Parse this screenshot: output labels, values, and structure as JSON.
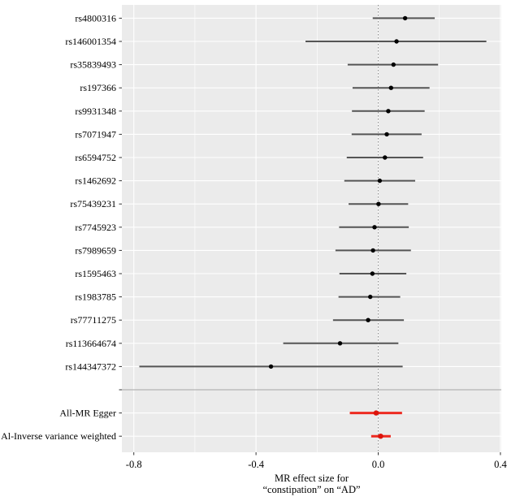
{
  "figure": {
    "background": "#ffffff",
    "panel_background": "#ebebeb",
    "grid_color": "#ffffff"
  },
  "chart_data": {
    "type": "forest",
    "xlabel_line1": "MR effect size for",
    "xlabel_line2": "“constipation” on “AD”",
    "x_tick_values": [
      -0.8,
      -0.4,
      0.0,
      0.4
    ],
    "x_tick_labels": [
      "-0.8",
      "-0.4",
      "0.0",
      "0.4"
    ],
    "x_minor_tick_values": [
      -0.6,
      -0.2,
      0.2
    ],
    "xlim": [
      -0.839,
      0.404
    ],
    "reference_line": 0.0,
    "grid": true,
    "rows": [
      {
        "label": "rs4800316",
        "estimate": 0.088,
        "ci_low": -0.018,
        "ci_high": 0.185,
        "group": "snp"
      },
      {
        "label": "rs146001354",
        "estimate": 0.06,
        "ci_low": -0.238,
        "ci_high": 0.354,
        "group": "snp"
      },
      {
        "label": "rs35839493",
        "estimate": 0.05,
        "ci_low": -0.1,
        "ci_high": 0.196,
        "group": "snp"
      },
      {
        "label": "rs197366",
        "estimate": 0.042,
        "ci_low": -0.084,
        "ci_high": 0.168,
        "group": "snp"
      },
      {
        "label": "rs9931348",
        "estimate": 0.033,
        "ci_low": -0.086,
        "ci_high": 0.152,
        "group": "snp"
      },
      {
        "label": "rs7071947",
        "estimate": 0.028,
        "ci_low": -0.087,
        "ci_high": 0.142,
        "group": "snp"
      },
      {
        "label": "rs6594752",
        "estimate": 0.022,
        "ci_low": -0.103,
        "ci_high": 0.147,
        "group": "snp"
      },
      {
        "label": "rs1462692",
        "estimate": 0.005,
        "ci_low": -0.111,
        "ci_high": 0.121,
        "group": "snp"
      },
      {
        "label": "rs75439231",
        "estimate": 0.001,
        "ci_low": -0.097,
        "ci_high": 0.098,
        "group": "snp"
      },
      {
        "label": "rs7745923",
        "estimate": -0.012,
        "ci_low": -0.128,
        "ci_high": 0.1,
        "group": "snp"
      },
      {
        "label": "rs7989659",
        "estimate": -0.017,
        "ci_low": -0.14,
        "ci_high": 0.107,
        "group": "snp"
      },
      {
        "label": "rs1595463",
        "estimate": -0.019,
        "ci_low": -0.127,
        "ci_high": 0.092,
        "group": "snp"
      },
      {
        "label": "rs1983785",
        "estimate": -0.026,
        "ci_low": -0.13,
        "ci_high": 0.072,
        "group": "snp"
      },
      {
        "label": "rs77711275",
        "estimate": -0.033,
        "ci_low": -0.148,
        "ci_high": 0.084,
        "group": "snp"
      },
      {
        "label": "rs113664674",
        "estimate": -0.125,
        "ci_low": -0.311,
        "ci_high": 0.066,
        "group": "snp"
      },
      {
        "label": "rs144347372",
        "estimate": -0.351,
        "ci_low": -0.782,
        "ci_high": 0.08,
        "group": "snp"
      },
      {
        "label": "",
        "separator": true
      },
      {
        "label": "All-MR Egger",
        "estimate": -0.007,
        "ci_low": -0.093,
        "ci_high": 0.078,
        "group": "summary"
      },
      {
        "label": "Al-Inverse variance weighted",
        "estimate": 0.008,
        "ci_low": -0.023,
        "ci_high": 0.041,
        "group": "summary"
      }
    ],
    "colors": {
      "snp_line": "#555555",
      "snp_dot": "#000000",
      "summary_line": "#ed2b21",
      "summary_dot": "#dd140b",
      "separator_line": "#b3b3b3",
      "reference_line": "#8c8c8c",
      "tick_color": "#333333"
    }
  }
}
